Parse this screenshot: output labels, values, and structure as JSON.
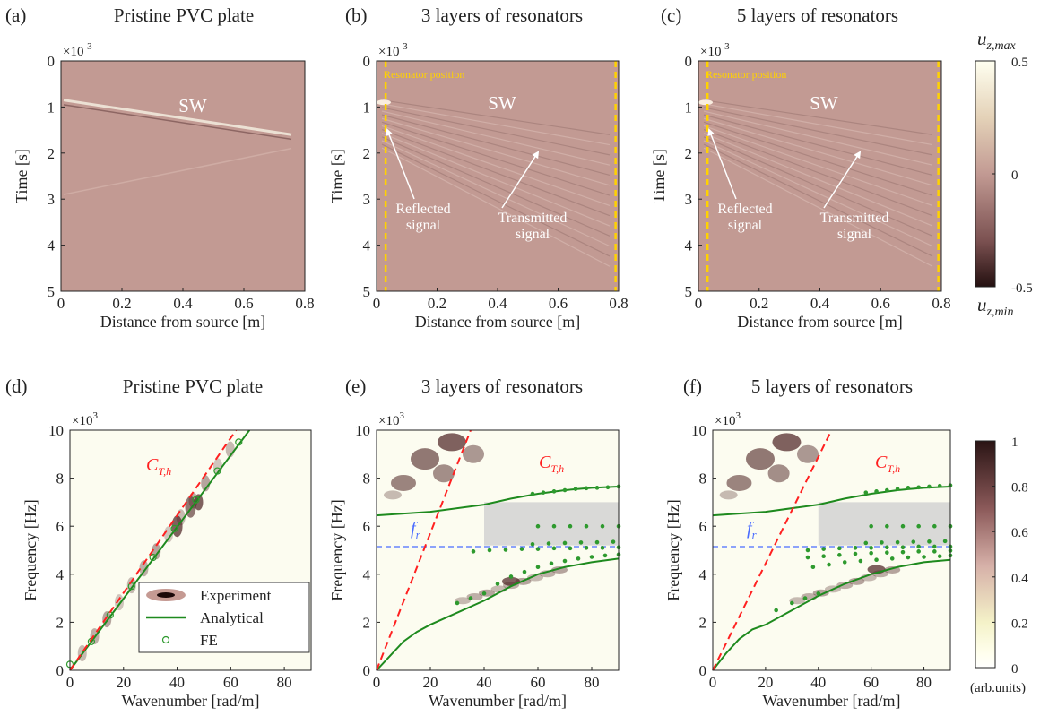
{
  "chart_data": [
    {
      "type": "heatmap",
      "panel": "(a)",
      "title": "Pristine PVC plate",
      "xlabel": "Distance from source [m]",
      "ylabel": "Time [s]",
      "xlim": [
        0,
        0.8
      ],
      "ylim": [
        0,
        5
      ],
      "y_reversed": true,
      "xticks": [
        0,
        0.2,
        0.4,
        0.6,
        0.8
      ],
      "yticks": [
        0,
        1,
        2,
        3,
        4,
        5
      ],
      "y_multiplier": "×10",
      "y_multiplier_exponent": "-3",
      "annotations": [
        "SW"
      ]
    },
    {
      "type": "heatmap",
      "panel": "(b)",
      "title": "3 layers of resonators",
      "xlabel": "Distance from source [m]",
      "ylabel": "Time [s]",
      "xlim": [
        0,
        0.8
      ],
      "ylim": [
        0,
        5
      ],
      "y_reversed": true,
      "xticks": [
        0,
        0.2,
        0.4,
        0.6,
        0.8
      ],
      "yticks": [
        0,
        1,
        2,
        3,
        4,
        5
      ],
      "y_multiplier": "×10",
      "y_multiplier_exponent": "-3",
      "annotations": [
        "Resonator position",
        "SW",
        [
          "Reflected",
          "signal"
        ],
        [
          "Transmitted",
          "signal"
        ]
      ],
      "resonator_x": [
        0.03,
        0.79
      ],
      "resonator_color": "#ffd200"
    },
    {
      "type": "heatmap",
      "panel": "(c)",
      "title": "5 layers of resonators",
      "xlabel": "Distance from source [m]",
      "ylabel": "Time [s]",
      "xlim": [
        0,
        0.8
      ],
      "ylim": [
        0,
        5
      ],
      "y_reversed": true,
      "xticks": [
        0,
        0.2,
        0.4,
        0.6,
        0.8
      ],
      "yticks": [
        0,
        1,
        2,
        3,
        4,
        5
      ],
      "y_multiplier": "×10",
      "y_multiplier_exponent": "-3",
      "annotations": [
        "Resonator position",
        "SW",
        [
          "Reflected",
          "signal"
        ],
        [
          "Transmitted",
          "signal"
        ]
      ],
      "resonator_x": [
        0.03,
        0.79
      ],
      "resonator_color": "#ffd200",
      "colorbar": {
        "top_label": "u",
        "top_label_subscript": "z,max",
        "bottom_label": "u",
        "bottom_label_subscript": "z,min",
        "lim": [
          -0.5,
          0.5
        ],
        "ticks": [
          0.5,
          0,
          -0.5
        ]
      }
    },
    {
      "type": "dispersion",
      "panel": "(d)",
      "title": "Pristine PVC plate",
      "xlabel": "Wavenumber [rad/m]",
      "ylabel": "Frequency [Hz]",
      "xlim": [
        0,
        90
      ],
      "ylim": [
        0,
        10
      ],
      "xticks": [
        0,
        20,
        40,
        60,
        80
      ],
      "yticks": [
        0,
        2,
        4,
        6,
        8,
        10
      ],
      "y_multiplier": "×10",
      "y_multiplier_exponent": "3",
      "legend": "lower right",
      "reference_line": {
        "label": "C",
        "label_subscript": "T,h",
        "color": "#ff2020",
        "x": [
          0,
          62
        ],
        "values": [
          0,
          10
        ]
      },
      "series": [
        {
          "name": "Experiment",
          "kind": "heatmap",
          "color": "#1a0808"
        },
        {
          "name": "Analytical",
          "kind": "line",
          "color": "#1e8a1e",
          "x": [
            0,
            67
          ],
          "values": [
            0,
            10
          ]
        },
        {
          "name": "FE",
          "kind": "scatter",
          "color": "#2e9a2e",
          "x": [
            0,
            8,
            15,
            23,
            31,
            39,
            47,
            55,
            63
          ],
          "values": [
            0.25,
            1.2,
            2.3,
            3.5,
            4.7,
            5.9,
            7.1,
            8.3,
            9.5
          ]
        }
      ]
    },
    {
      "type": "dispersion",
      "panel": "(e)",
      "title": "3 layers of resonators",
      "xlabel": "Wavenumber [rad/m]",
      "ylabel": "Frequency [Hz]",
      "xlim": [
        0,
        90
      ],
      "ylim": [
        0,
        10
      ],
      "xticks": [
        0,
        20,
        40,
        60,
        80
      ],
      "yticks": [
        0,
        2,
        4,
        6,
        8,
        10
      ],
      "y_multiplier": "×10",
      "y_multiplier_exponent": "3",
      "reference_line": {
        "label": "C",
        "label_subscript": "T,h",
        "color": "#ff2020",
        "x": [
          0,
          35
        ],
        "values": [
          0,
          10
        ]
      },
      "resonance": {
        "label": "f",
        "label_subscript": "r",
        "value": 5.15,
        "color": "#4a6cff"
      },
      "bandgap": {
        "x": [
          40,
          90
        ],
        "y": [
          5.2,
          7.0
        ]
      },
      "series": [
        {
          "name": "Analytical",
          "kind": "line",
          "color": "#1e8a1e",
          "x": [
            0,
            5,
            10,
            15,
            20,
            30,
            40,
            50,
            60,
            70,
            80,
            90,
            null,
            0,
            20,
            40,
            50,
            60,
            70,
            80,
            90
          ],
          "values": [
            0,
            0.6,
            1.2,
            1.6,
            1.9,
            2.4,
            2.9,
            3.5,
            4.0,
            4.3,
            4.5,
            4.65,
            null,
            6.45,
            6.6,
            6.9,
            7.15,
            7.35,
            7.5,
            7.6,
            7.65
          ]
        },
        {
          "name": "FE",
          "kind": "scatter",
          "color": "#2e9a2e",
          "x": [
            58,
            62,
            66,
            70,
            74,
            78,
            82,
            86,
            90,
            60,
            66,
            72,
            78,
            84,
            90,
            58,
            64,
            70,
            76,
            82,
            88,
            36,
            42,
            48,
            54,
            60,
            66,
            72,
            78,
            84,
            90,
            45,
            50,
            55,
            60,
            65,
            70,
            75,
            80,
            85,
            90,
            30,
            35,
            40
          ],
          "values": [
            7.35,
            7.4,
            7.45,
            7.5,
            7.55,
            7.58,
            7.6,
            7.62,
            7.65,
            6.0,
            6.0,
            6.0,
            6.0,
            6.0,
            6.0,
            5.25,
            5.28,
            5.3,
            5.32,
            5.33,
            5.35,
            4.95,
            5.0,
            5.02,
            5.05,
            5.05,
            5.08,
            5.08,
            5.1,
            5.1,
            5.12,
            3.6,
            3.9,
            4.1,
            4.3,
            4.45,
            4.55,
            4.65,
            4.72,
            4.78,
            4.82,
            2.8,
            3.0,
            3.2
          ]
        }
      ]
    },
    {
      "type": "dispersion",
      "panel": "(f)",
      "title": "5 layers of resonators",
      "xlabel": "Wavenumber [rad/m]",
      "ylabel": "Frequency [Hz]",
      "xlim": [
        0,
        90
      ],
      "ylim": [
        0,
        10
      ],
      "xticks": [
        0,
        20,
        40,
        60,
        80
      ],
      "yticks": [
        0,
        2,
        4,
        6,
        8,
        10
      ],
      "y_multiplier": "×10",
      "y_multiplier_exponent": "3",
      "reference_line": {
        "label": "C",
        "label_subscript": "T,h",
        "color": "#ff2020",
        "x": [
          0,
          45
        ],
        "values": [
          0,
          10
        ]
      },
      "resonance": {
        "label": "f",
        "label_subscript": "r",
        "value": 5.15,
        "color": "#4a6cff"
      },
      "bandgap": {
        "x": [
          40,
          90
        ],
        "y": [
          5.2,
          7.0
        ]
      },
      "series": [
        {
          "name": "Analytical",
          "kind": "line",
          "color": "#1e8a1e",
          "x": [
            0,
            5,
            10,
            15,
            20,
            30,
            40,
            50,
            60,
            70,
            80,
            90,
            null,
            0,
            20,
            40,
            50,
            60,
            70,
            80,
            90
          ],
          "values": [
            0,
            0.7,
            1.3,
            1.7,
            1.9,
            2.5,
            3.1,
            3.6,
            4.0,
            4.3,
            4.5,
            4.6,
            null,
            6.45,
            6.6,
            6.9,
            7.15,
            7.35,
            7.5,
            7.6,
            7.65
          ]
        },
        {
          "name": "FE",
          "kind": "scatter",
          "color": "#2e9a2e",
          "x": [
            58,
            62,
            66,
            70,
            74,
            78,
            82,
            86,
            90,
            60,
            66,
            72,
            78,
            84,
            90,
            58,
            64,
            70,
            76,
            82,
            88,
            36,
            42,
            48,
            54,
            60,
            66,
            72,
            78,
            84,
            90,
            36,
            42,
            48,
            54,
            60,
            66,
            72,
            78,
            84,
            90,
            38,
            44,
            50,
            56,
            62,
            68,
            74,
            80,
            86,
            90,
            24,
            30,
            35,
            40
          ],
          "values": [
            7.4,
            7.45,
            7.5,
            7.55,
            7.6,
            7.62,
            7.65,
            7.68,
            7.7,
            6.0,
            6.0,
            6.0,
            6.0,
            6.0,
            6.0,
            5.3,
            5.32,
            5.33,
            5.35,
            5.36,
            5.38,
            5.0,
            5.05,
            5.08,
            5.1,
            5.1,
            5.12,
            5.12,
            5.15,
            5.15,
            5.15,
            4.7,
            4.75,
            4.8,
            4.85,
            4.88,
            4.9,
            4.92,
            4.95,
            4.95,
            4.98,
            4.3,
            4.4,
            4.5,
            4.55,
            4.6,
            4.65,
            4.7,
            4.72,
            4.75,
            4.78,
            2.5,
            2.8,
            3.0,
            3.2
          ]
        }
      ],
      "colorbar": {
        "label": "(arb.units)",
        "lim": [
          0,
          1
        ],
        "ticks": [
          0,
          0.2,
          0.4,
          0.6,
          0.8,
          1
        ]
      }
    }
  ]
}
